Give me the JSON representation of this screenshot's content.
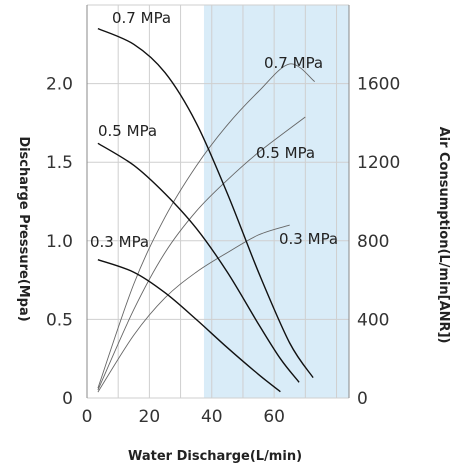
{
  "chart_data": {
    "type": "line",
    "xlabel": "Water Discharge(L/min)",
    "ylabel": "Discharge Pressure(Mpa)",
    "y2label": "Air Consumption(L/min[ANR])",
    "xlim": [
      0,
      84
    ],
    "ylim": [
      0,
      2.5
    ],
    "y2lim": [
      0,
      2000
    ],
    "x_ticks": [
      "0",
      "20",
      "40",
      "60"
    ],
    "x_tick_values": [
      0,
      20,
      40,
      60
    ],
    "y_ticks": [
      "0",
      "0.5",
      "1.0",
      "1.5",
      "2.0"
    ],
    "y_tick_values": [
      0,
      0.5,
      1.0,
      1.5,
      2.0
    ],
    "y2_ticks": [
      "0",
      "400",
      "800",
      "1200",
      "1600"
    ],
    "y2_tick_values": [
      0,
      400,
      800,
      1200,
      1600
    ],
    "grid": true,
    "shaded_region": {
      "x_start": 37.5,
      "x_end": 84,
      "color": "#d9ecf8"
    },
    "pressure_series": [
      {
        "label": "0.7 MPa",
        "points": [
          [
            3.5,
            2.35
          ],
          [
            15,
            2.25
          ],
          [
            25,
            2.07
          ],
          [
            35,
            1.75
          ],
          [
            45,
            1.3
          ],
          [
            55,
            0.8
          ],
          [
            65,
            0.35
          ],
          [
            72.5,
            0.13
          ]
        ]
      },
      {
        "label": "0.5 MPa",
        "points": [
          [
            3.5,
            1.62
          ],
          [
            15,
            1.48
          ],
          [
            25,
            1.3
          ],
          [
            35,
            1.08
          ],
          [
            45,
            0.8
          ],
          [
            55,
            0.47
          ],
          [
            62,
            0.25
          ],
          [
            68,
            0.1
          ]
        ]
      },
      {
        "label": "0.3 MPa",
        "points": [
          [
            3.5,
            0.88
          ],
          [
            15,
            0.8
          ],
          [
            25,
            0.67
          ],
          [
            35,
            0.5
          ],
          [
            45,
            0.32
          ],
          [
            55,
            0.15
          ],
          [
            62,
            0.04
          ]
        ]
      }
    ],
    "air_series": [
      {
        "label": "0.7 MPa",
        "points": [
          [
            3.5,
            50
          ],
          [
            15,
            580
          ],
          [
            25,
            920
          ],
          [
            35,
            1180
          ],
          [
            45,
            1390
          ],
          [
            55,
            1560
          ],
          [
            65,
            1700
          ],
          [
            73,
            1610
          ]
        ]
      },
      {
        "label": "0.5 MPa",
        "points": [
          [
            3.5,
            40
          ],
          [
            15,
            450
          ],
          [
            25,
            740
          ],
          [
            35,
            950
          ],
          [
            45,
            1110
          ],
          [
            55,
            1250
          ],
          [
            70,
            1430
          ]
        ]
      },
      {
        "label": "0.3 MPa",
        "points": [
          [
            3.5,
            30
          ],
          [
            15,
            320
          ],
          [
            25,
            510
          ],
          [
            35,
            640
          ],
          [
            45,
            740
          ],
          [
            55,
            830
          ],
          [
            65,
            880
          ]
        ]
      }
    ]
  }
}
